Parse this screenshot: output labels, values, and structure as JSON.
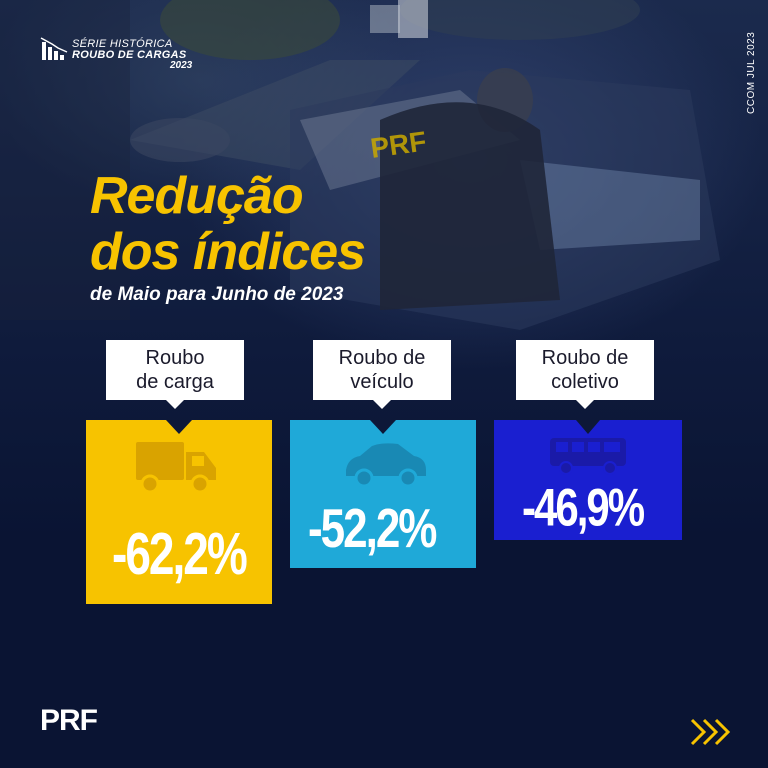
{
  "series": {
    "line1": "SÉRIE HISTÓRICA",
    "line2": "ROUBO DE CARGAS",
    "line3": "2023"
  },
  "side_text": "CCOM JUL 2023",
  "headline": {
    "line1": "Redução",
    "line2": "dos índices"
  },
  "subtitle": "de Maio para Junho de 2023",
  "cards": [
    {
      "label_line1": "Roubo",
      "label_line2": "de carga",
      "value": "-62,2%",
      "color": "#f7c300",
      "icon": "truck-icon"
    },
    {
      "label_line1": "Roubo de",
      "label_line2": "veículo",
      "value": "-52,2%",
      "color": "#1fa9d8",
      "icon": "car-icon"
    },
    {
      "label_line1": "Roubo de",
      "label_line2": "coletivo",
      "value": "-46,9%",
      "color": "#1a1fd0",
      "icon": "bus-icon"
    }
  ],
  "footer": {
    "logo": "PRF",
    "arrow_icon": "chevrons-right-icon",
    "arrow_color": "#f7c300"
  }
}
